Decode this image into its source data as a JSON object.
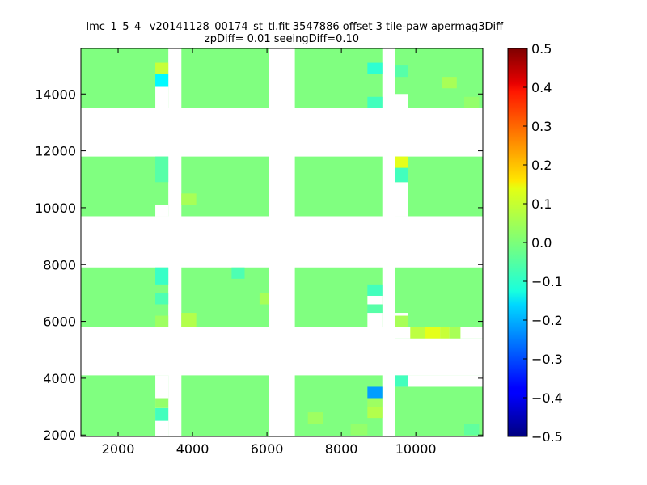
{
  "chart_data": {
    "type": "heatmap",
    "title": "_lmc_1_5_4_ v20141128_00174_st_tl.fit 3547886 offset 3 tile-paw apermag3Diff",
    "subtitle": "zpDiff= 0.01 seeingDiff=0.10",
    "xlabel": "",
    "ylabel": "",
    "xlim": [
      1000,
      11800
    ],
    "ylim": [
      1950,
      15600
    ],
    "x_ticks": [
      "2000",
      "4000",
      "6000",
      "8000",
      "10000"
    ],
    "y_ticks": [
      "2000",
      "4000",
      "6000",
      "8000",
      "10000",
      "12000",
      "14000"
    ],
    "colorbar": {
      "min": -0.5,
      "max": 0.5,
      "colormap": "jet",
      "ticks": [
        "−0.5",
        "−0.4",
        "−0.3",
        "−0.2",
        "−0.1",
        "0.0",
        "0.1",
        "0.2",
        "0.3",
        "0.4",
        "0.5"
      ]
    },
    "grid": false,
    "base_value": 0.0,
    "tiles": [
      {
        "x": [
          1000,
          3350
        ],
        "y": [
          1950,
          4100
        ]
      },
      {
        "x": [
          3700,
          6050
        ],
        "y": [
          1950,
          4100
        ]
      },
      {
        "x": [
          6750,
          9100
        ],
        "y": [
          1950,
          4100
        ]
      },
      {
        "x": [
          9450,
          11800
        ],
        "y": [
          1950,
          4100
        ]
      },
      {
        "x": [
          1000,
          3350
        ],
        "y": [
          5800,
          7900
        ]
      },
      {
        "x": [
          3700,
          6050
        ],
        "y": [
          5800,
          7900
        ]
      },
      {
        "x": [
          6750,
          9100
        ],
        "y": [
          5800,
          7900
        ]
      },
      {
        "x": [
          9450,
          11800
        ],
        "y": [
          5400,
          7900
        ]
      },
      {
        "x": [
          1000,
          3350
        ],
        "y": [
          9700,
          11800
        ]
      },
      {
        "x": [
          3700,
          6050
        ],
        "y": [
          9700,
          11800
        ]
      },
      {
        "x": [
          6750,
          9100
        ],
        "y": [
          9700,
          11800
        ]
      },
      {
        "x": [
          9450,
          11800
        ],
        "y": [
          9700,
          11800
        ]
      },
      {
        "x": [
          1000,
          3350
        ],
        "y": [
          13500,
          15600
        ]
      },
      {
        "x": [
          3700,
          6050
        ],
        "y": [
          13500,
          15600
        ]
      },
      {
        "x": [
          6750,
          9100
        ],
        "y": [
          13500,
          15600
        ]
      },
      {
        "x": [
          9450,
          11800
        ],
        "y": [
          13500,
          15600
        ]
      }
    ],
    "missing": [
      {
        "x": [
          3000,
          3350
        ],
        "y": [
          1950,
          3300
        ]
      },
      {
        "x": [
          3000,
          3350
        ],
        "y": [
          3300,
          4100
        ]
      },
      {
        "x": [
          3000,
          3350
        ],
        "y": [
          9700,
          10100
        ]
      },
      {
        "x": [
          3000,
          3350
        ],
        "y": [
          13500,
          14250
        ]
      },
      {
        "x": [
          8700,
          9100
        ],
        "y": [
          5800,
          6300
        ]
      },
      {
        "x": [
          8700,
          9100
        ],
        "y": [
          6600,
          6900
        ]
      },
      {
        "x": [
          9450,
          11800
        ],
        "y": [
          5400,
          5800
        ]
      },
      {
        "x": [
          9450,
          9800
        ],
        "y": [
          5800,
          6300
        ]
      },
      {
        "x": [
          9450,
          11800
        ],
        "y": [
          3700,
          4100
        ]
      },
      {
        "x": [
          9450,
          9800
        ],
        "y": [
          13500,
          14000
        ]
      },
      {
        "x": [
          9450,
          9800
        ],
        "y": [
          9700,
          10900
        ]
      }
    ],
    "cells": [
      {
        "x": [
          10250,
          10650
        ],
        "y": [
          5400,
          5800
        ],
        "value": 0.1
      },
      {
        "x": [
          10650,
          10900
        ],
        "y": [
          5400,
          5800
        ],
        "value": 0.07
      },
      {
        "x": [
          9850,
          10250
        ],
        "y": [
          5400,
          5800
        ],
        "value": 0.06
      },
      {
        "x": [
          10900,
          11200
        ],
        "y": [
          5400,
          5800
        ],
        "value": 0.04
      },
      {
        "x": [
          9450,
          9800
        ],
        "y": [
          5800,
          6200
        ],
        "value": 0.04
      },
      {
        "x": [
          9450,
          9800
        ],
        "y": [
          3700,
          4100
        ],
        "value": -0.06
      },
      {
        "x": [
          8700,
          9100
        ],
        "y": [
          3300,
          3700
        ],
        "value": -0.22
      },
      {
        "x": [
          8700,
          9100
        ],
        "y": [
          2600,
          3000
        ],
        "value": 0.05
      },
      {
        "x": [
          8700,
          9100
        ],
        "y": [
          3000,
          3300
        ],
        "value": 0.03
      },
      {
        "x": [
          3000,
          3350
        ],
        "y": [
          2500,
          2950
        ],
        "value": -0.06
      },
      {
        "x": [
          3000,
          3350
        ],
        "y": [
          2950,
          3300
        ],
        "value": 0.02
      },
      {
        "x": [
          3000,
          3350
        ],
        "y": [
          7300,
          7900
        ],
        "value": -0.07
      },
      {
        "x": [
          3000,
          3350
        ],
        "y": [
          6600,
          7000
        ],
        "value": -0.05
      },
      {
        "x": [
          3000,
          3350
        ],
        "y": [
          5800,
          6200
        ],
        "value": 0.03
      },
      {
        "x": [
          3700,
          4100
        ],
        "y": [
          5800,
          6300
        ],
        "value": 0.05
      },
      {
        "x": [
          5800,
          6050
        ],
        "y": [
          6600,
          7000
        ],
        "value": 0.04
      },
      {
        "x": [
          5050,
          5400
        ],
        "y": [
          7500,
          7900
        ],
        "value": -0.05
      },
      {
        "x": [
          8700,
          9100
        ],
        "y": [
          6900,
          7300
        ],
        "value": -0.06
      },
      {
        "x": [
          8700,
          9100
        ],
        "y": [
          6300,
          6600
        ],
        "value": -0.04
      },
      {
        "x": [
          9450,
          9800
        ],
        "y": [
          11400,
          11800
        ],
        "value": 0.1
      },
      {
        "x": [
          9450,
          9800
        ],
        "y": [
          10900,
          11400
        ],
        "value": -0.06
      },
      {
        "x": [
          3000,
          3350
        ],
        "y": [
          10900,
          11800
        ],
        "value": -0.04
      },
      {
        "x": [
          3700,
          4100
        ],
        "y": [
          10100,
          10500
        ],
        "value": 0.04
      },
      {
        "x": [
          3000,
          3350
        ],
        "y": [
          14250,
          14700
        ],
        "value": -0.13
      },
      {
        "x": [
          3000,
          3350
        ],
        "y": [
          14700,
          15100
        ],
        "value": 0.07
      },
      {
        "x": [
          8700,
          9100
        ],
        "y": [
          13500,
          13900
        ],
        "value": -0.06
      },
      {
        "x": [
          8700,
          9100
        ],
        "y": [
          14700,
          15100
        ],
        "value": -0.08
      },
      {
        "x": [
          9450,
          9800
        ],
        "y": [
          14600,
          15000
        ],
        "value": -0.04
      },
      {
        "x": [
          11300,
          11700
        ],
        "y": [
          13500,
          13900
        ],
        "value": 0.02
      },
      {
        "x": [
          10700,
          11100
        ],
        "y": [
          14200,
          14600
        ],
        "value": 0.04
      },
      {
        "x": [
          8250,
          8700
        ],
        "y": [
          2000,
          2400
        ],
        "value": 0.02
      },
      {
        "x": [
          7100,
          7500
        ],
        "y": [
          2400,
          2800
        ],
        "value": 0.03
      },
      {
        "x": [
          11300,
          11700
        ],
        "y": [
          2000,
          2400
        ],
        "value": -0.03
      }
    ]
  }
}
